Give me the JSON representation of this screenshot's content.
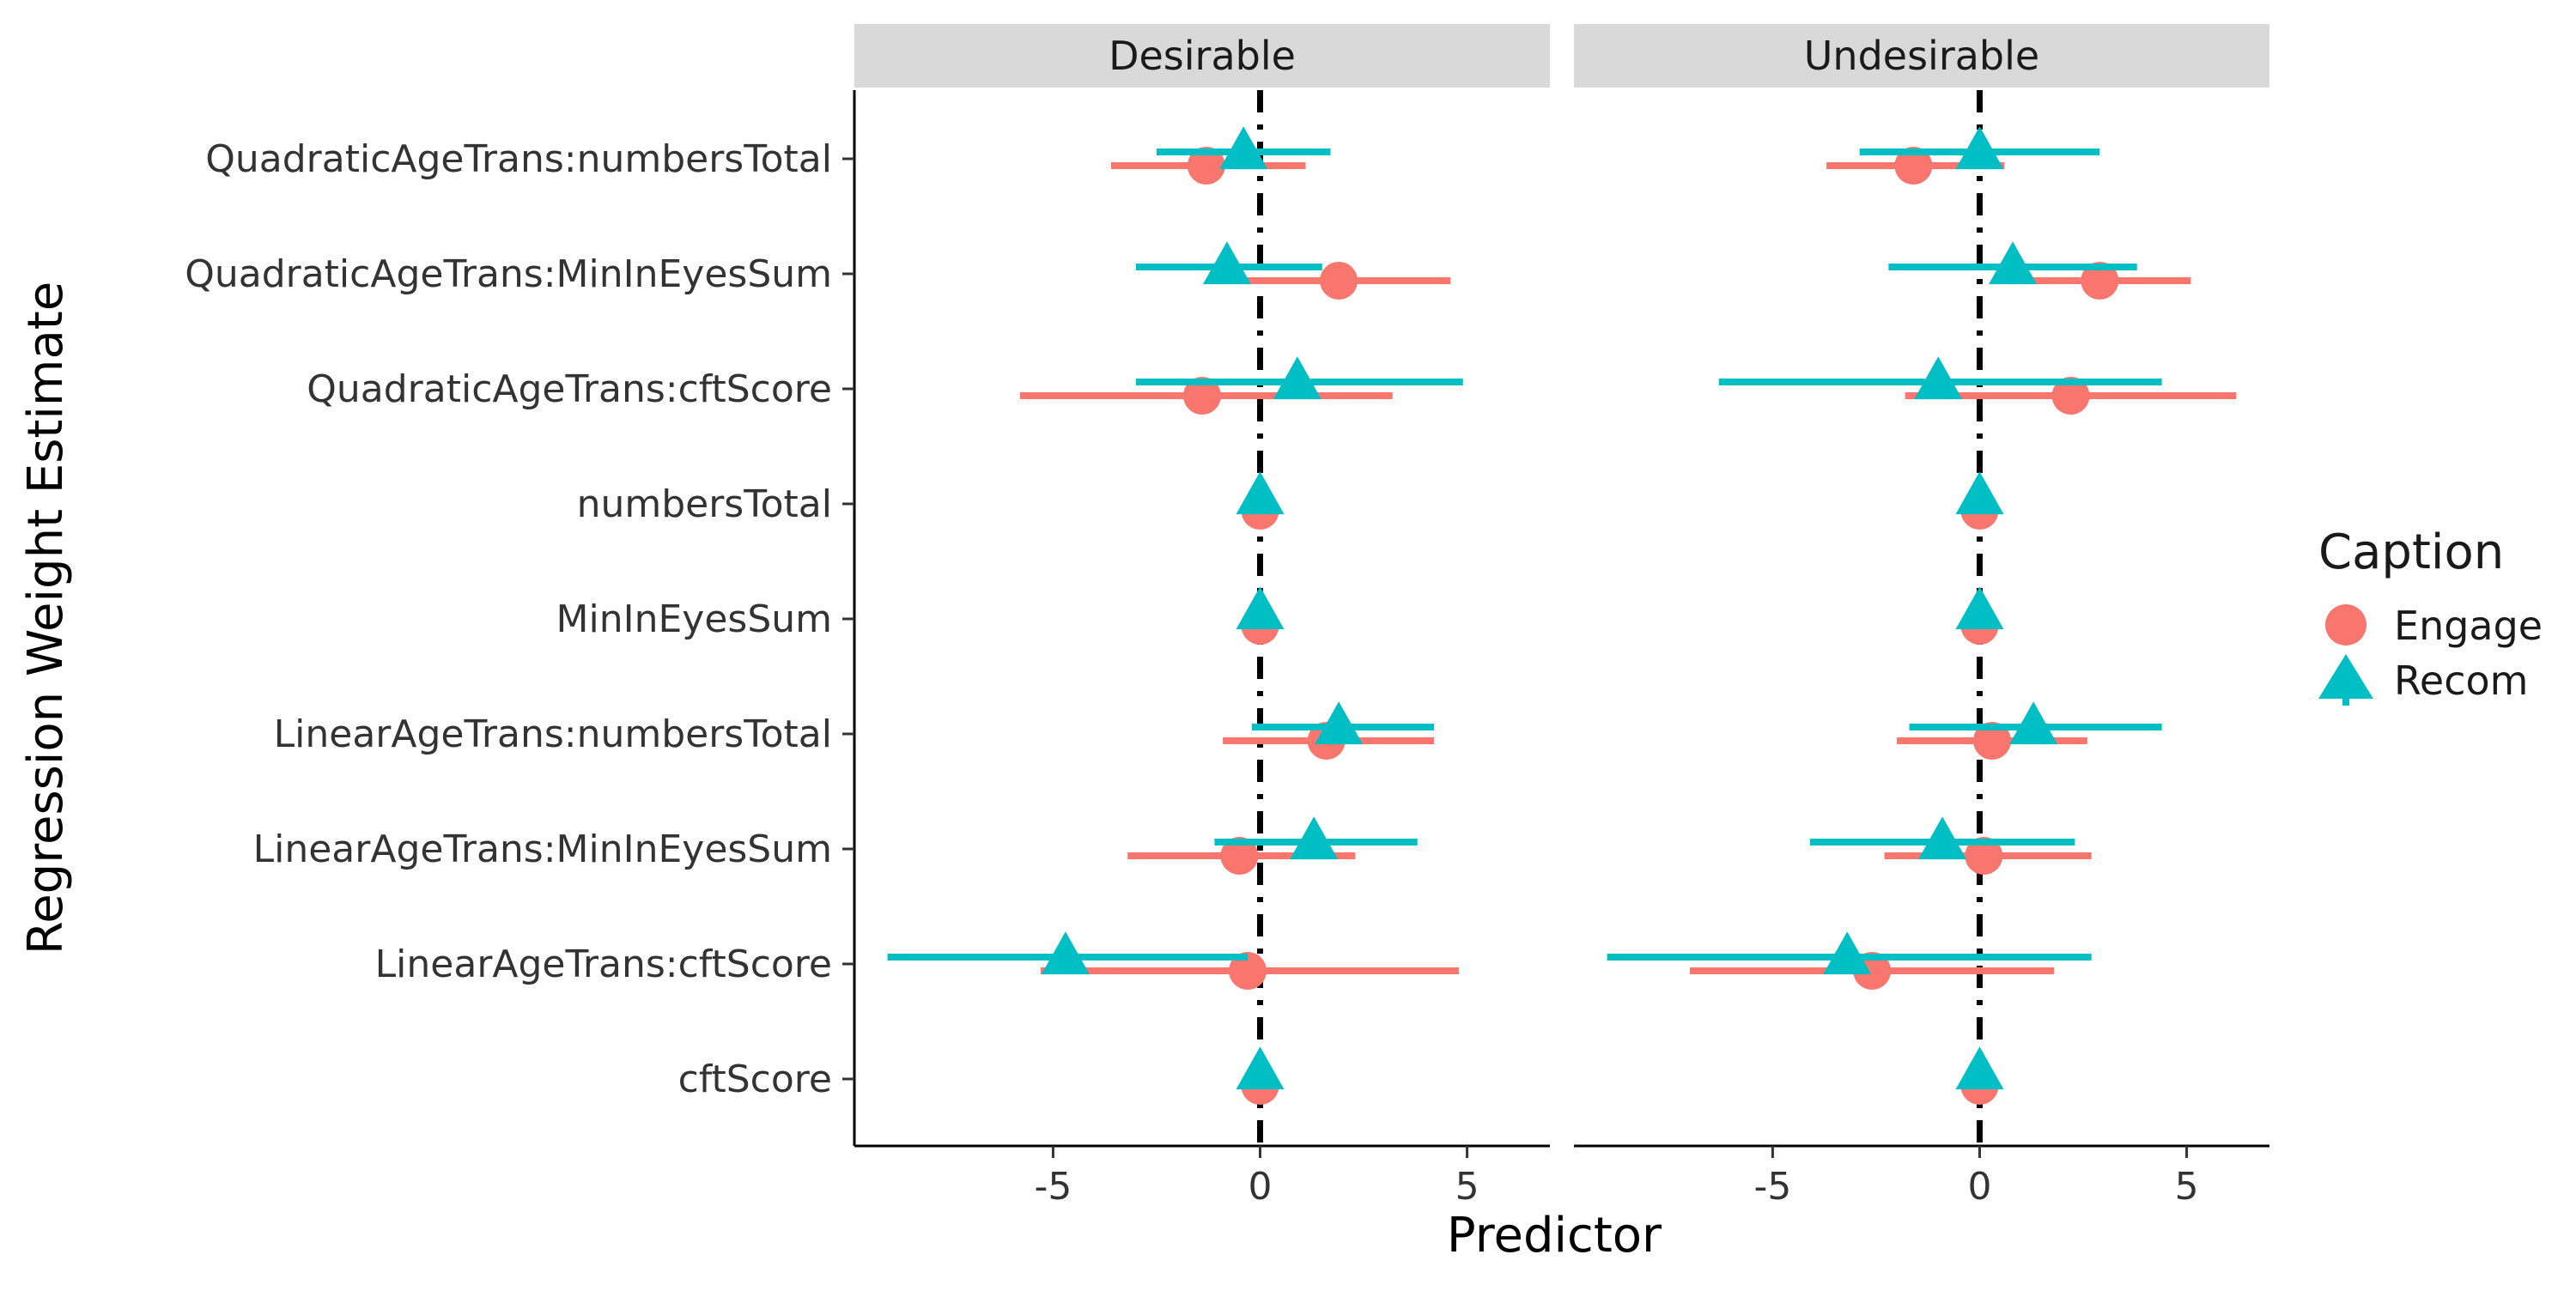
{
  "chart_data": {
    "type": "scatter",
    "subtype": "faceted-coefficient-plot-with-error-bars",
    "xlabel": "Predictor",
    "ylabel": "Regression Weight Estimate",
    "xlim": [
      -9.8,
      7
    ],
    "x_ticks": [
      -5,
      0,
      5
    ],
    "x_tick_labels": [
      "-5",
      "0",
      "5"
    ],
    "reference_line_x": 0,
    "grid": false,
    "legend": {
      "title": "Caption",
      "placement": "right",
      "entries": [
        {
          "label": "Engage",
          "color": "#F8766D",
          "shape": "circle"
        },
        {
          "label": "Recom",
          "color": "#00BFC4",
          "shape": "triangle"
        }
      ]
    },
    "categories": [
      "QuadraticAgeTrans:numbersTotal",
      "QuadraticAgeTrans:MinInEyesSum",
      "QuadraticAgeTrans:cftScore",
      "numbersTotal",
      "MinInEyesSum",
      "LinearAgeTrans:numbersTotal",
      "LinearAgeTrans:MinInEyesSum",
      "LinearAgeTrans:cftScore",
      "cftScore"
    ],
    "facets": [
      {
        "label": "Desirable",
        "series": [
          {
            "name": "Engage",
            "estimates": [
              -1.3,
              1.9,
              -1.4,
              0.0,
              0.0,
              1.6,
              -0.5,
              -0.3,
              0.0
            ],
            "lower": [
              -3.6,
              -0.6,
              -5.8,
              -0.1,
              -0.1,
              -0.9,
              -3.2,
              -5.3,
              -0.1
            ],
            "upper": [
              1.1,
              4.6,
              3.2,
              0.1,
              0.1,
              4.2,
              2.3,
              4.8,
              0.1
            ]
          },
          {
            "name": "Recom",
            "estimates": [
              -0.4,
              -0.8,
              0.9,
              0.0,
              0.0,
              1.9,
              1.3,
              -4.7,
              0.0
            ],
            "lower": [
              -2.5,
              -3.0,
              -3.0,
              -0.1,
              -0.1,
              -0.2,
              -1.1,
              -9.0,
              -0.1
            ],
            "upper": [
              1.7,
              1.5,
              4.9,
              0.1,
              0.1,
              4.2,
              3.8,
              -0.3,
              0.1
            ]
          }
        ]
      },
      {
        "label": "Undesirable",
        "series": [
          {
            "name": "Engage",
            "estimates": [
              -1.6,
              2.9,
              2.2,
              0.0,
              0.0,
              0.3,
              0.1,
              -2.6,
              0.0
            ],
            "lower": [
              -3.7,
              0.7,
              -1.8,
              -0.1,
              -0.1,
              -2.0,
              -2.3,
              -7.0,
              -0.1
            ],
            "upper": [
              0.6,
              5.1,
              6.2,
              0.1,
              0.1,
              2.6,
              2.7,
              1.8,
              0.1
            ]
          },
          {
            "name": "Recom",
            "estimates": [
              0.0,
              0.8,
              -1.0,
              0.0,
              0.0,
              1.3,
              -0.9,
              -3.2,
              0.0
            ],
            "lower": [
              -2.9,
              -2.2,
              -6.3,
              -0.1,
              -0.1,
              -1.7,
              -4.1,
              -9.0,
              -0.1
            ],
            "upper": [
              2.9,
              3.8,
              4.4,
              0.1,
              0.1,
              4.4,
              2.3,
              2.7,
              0.1
            ]
          }
        ]
      }
    ]
  }
}
